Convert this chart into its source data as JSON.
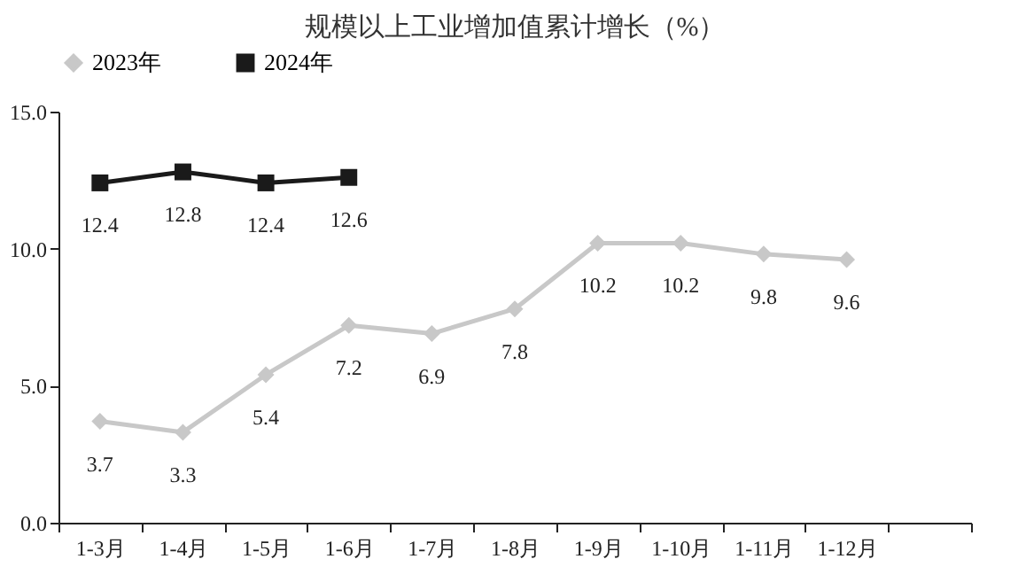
{
  "chart_data": {
    "type": "line",
    "title": "规模以上工业增加值累计增长（%）",
    "categories": [
      "1-3月",
      "1-4月",
      "1-5月",
      "1-6月",
      "1-7月",
      "1-8月",
      "1-9月",
      "1-10月",
      "1-11月",
      "1-12月",
      null
    ],
    "series": [
      {
        "name": "2023年",
        "color": "#c8c8c8",
        "marker": "diamond",
        "values": [
          3.7,
          3.3,
          5.4,
          7.2,
          6.9,
          7.8,
          10.2,
          10.2,
          9.8,
          9.6,
          null
        ]
      },
      {
        "name": "2024年",
        "color": "#1a1a1a",
        "marker": "square",
        "values": [
          12.4,
          12.8,
          12.4,
          12.6,
          null,
          null,
          null,
          null,
          null,
          null,
          null
        ]
      }
    ],
    "ylim": [
      0,
      15
    ],
    "yticks": [
      {
        "value": 0,
        "label": "0.0"
      },
      {
        "value": 5,
        "label": "5.0"
      },
      {
        "value": 10,
        "label": "10.0"
      },
      {
        "value": 15,
        "label": "15.0"
      }
    ],
    "data_labels": true,
    "grid": false,
    "legend": "top"
  }
}
